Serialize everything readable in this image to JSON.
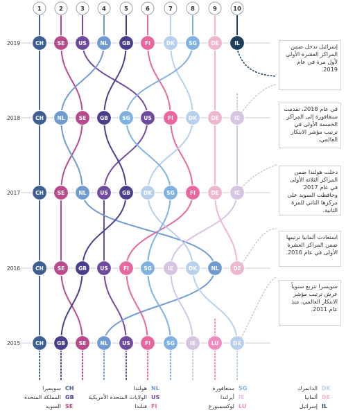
{
  "chart_data": {
    "type": "bump",
    "title": "",
    "ranks": [
      "1",
      "2",
      "3",
      "4",
      "5",
      "6",
      "7",
      "8",
      "9",
      "10"
    ],
    "years": [
      "2019",
      "2018",
      "2017",
      "2016",
      "2015"
    ],
    "rankings": {
      "2019": [
        "CH",
        "SE",
        "US",
        "NL",
        "GB",
        "FI",
        "DK",
        "SG",
        "DE",
        "IL"
      ],
      "2018": [
        "CH",
        "NL",
        "SE",
        "GB",
        "SG",
        "US",
        "FI",
        "DK",
        "DE",
        "IE"
      ],
      "2017": [
        "CH",
        "SE",
        "NL",
        "US",
        "GB",
        "DK",
        "SG",
        "FI",
        "DE",
        "IE"
      ],
      "2016": [
        "CH",
        "SE",
        "GB",
        "US",
        "FI",
        "SG",
        "IE",
        "DK",
        "NL",
        "DE"
      ],
      "2015": [
        "CH",
        "GB",
        "SE",
        "NL",
        "US",
        "FI",
        "SG",
        "IE",
        "LU",
        "DK"
      ]
    },
    "colors": {
      "CH": "#3d5f94",
      "SE": "#b84a8c",
      "US": "#6e4b9e",
      "NL": "#6f9bd2",
      "GB": "#4b3d8e",
      "FI": "#e8679f",
      "DK": "#b8d0ec",
      "SG": "#7fb2e0",
      "DE": "#f0b6cf",
      "IL": "#1c3f5c",
      "IE": "#d6c4e2",
      "LU": "#f08cc0"
    },
    "annotations": [
      {
        "year": "2019",
        "text": "إسرائيل تدخل ضمن المراكز العشرة الأولى لأول مرة في عام 2019."
      },
      {
        "year": "2018",
        "text": "في عام 2018، تقدمت سنغافورة إلى المراكز الخمسة الأولى في ترتيب مؤشر الابتكار العالمي."
      },
      {
        "year": "2017",
        "text": "دخلت هولندا ضمن المراكز الثلاثة الأولى في عام 2017 وحافظت السويد على مركزها الثاني للمرة الثانية."
      },
      {
        "year": "2016",
        "text": "استعادت ألمانيا ترتيبها ضمن المراكز العشرة الأولى في عام 2016."
      },
      {
        "year": "2015",
        "text": "سويسرا تتربع سنوياً عرش ترتيب مؤشر الابتكار العالمي، منذ عام 2011."
      }
    ],
    "legend": [
      {
        "code": "CH",
        "name": "سويسرا"
      },
      {
        "code": "GB",
        "name": "المملكة المتحدة"
      },
      {
        "code": "SE",
        "name": "السويد"
      },
      {
        "code": "NL",
        "name": "هولندا"
      },
      {
        "code": "US",
        "name": "الولايات المتحدة الأمريكية"
      },
      {
        "code": "FI",
        "name": "فنلندا"
      },
      {
        "code": "SG",
        "name": "سنغافورة"
      },
      {
        "code": "IE",
        "name": "أيرلندا"
      },
      {
        "code": "LU",
        "name": "لوكسمبورغ"
      },
      {
        "code": "DK",
        "name": "الدانمرك"
      },
      {
        "code": "DE",
        "name": "ألمانيا"
      },
      {
        "code": "IL",
        "name": "إسرائيل"
      }
    ]
  }
}
